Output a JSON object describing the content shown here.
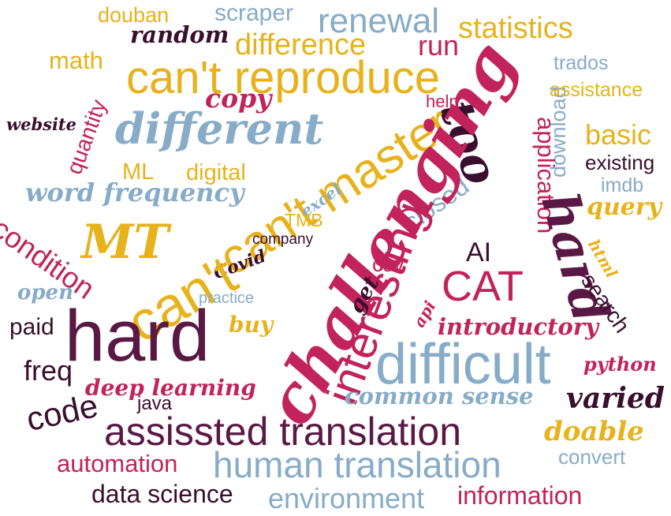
{
  "colors": {
    "gold": "#e7b21b",
    "blue": "#86acc8",
    "crimson": "#c1235a",
    "plum": "#5a1845",
    "dark_plum": "#3a0f2e"
  },
  "words": {
    "douban": "douban",
    "scraper": "scraper",
    "renewal": "renewal",
    "statistics": "statistics",
    "random": "random",
    "difference": "difference",
    "run": "run",
    "math": "math",
    "cant_reproduce": "can't reproduce",
    "download": "download",
    "trados": "trados",
    "assistance": "assistance",
    "quantity": "quantity",
    "copy": "copy",
    "help": "help",
    "website": "website",
    "different": "different",
    "too": "too",
    "application": "application",
    "basic": "basic",
    "existing": "existing",
    "ml": "ML",
    "digital": "digital",
    "cant_master": "can't master",
    "challenging": "challenging",
    "word_frequency": "word frequency",
    "excel": "excel",
    "closed": "closed",
    "imdb": "imdb",
    "hard_vertical": "hard",
    "query": "query",
    "condition": "condition",
    "mt": "MT",
    "tmb": "TMB",
    "company": "company",
    "html": "html",
    "ai": "AI",
    "interesting": "interesting",
    "covid": "Covid",
    "cant": "can't",
    "get": "get",
    "csv": "csv",
    "cat": "CAT",
    "open": "open",
    "practice": "practice",
    "search": "search",
    "paid": "paid",
    "hard": "hard",
    "buy": "buy",
    "api": "api",
    "introductory": "introductory",
    "difficult": "difficult",
    "freq": "freq",
    "python": "python",
    "deep_learning": "deep learning",
    "common_sense": "common sense",
    "varied": "varied",
    "code": "code",
    "java": "java",
    "assissted_translation": "assissted translation",
    "doable": "doable",
    "automation": "automation",
    "human_translation": "human translation",
    "convert": "convert",
    "data_science": "data science",
    "environment": "environment",
    "information": "information"
  }
}
